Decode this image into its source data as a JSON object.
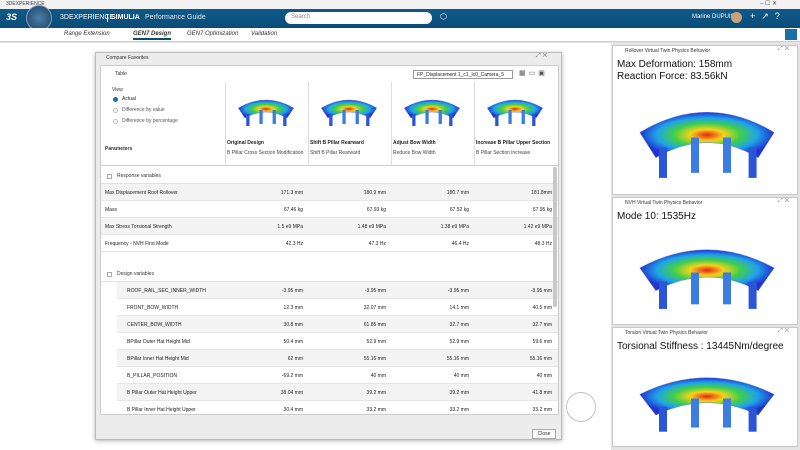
{
  "window_title": "3DEXPERIENCE",
  "header": {
    "brand": "3DEXPERIENCE",
    "app": "SIMULIA",
    "subtitle": "Performance Guide",
    "search": "Search",
    "user": "Marine DUPUIS"
  },
  "tabs": [
    "Range Extension",
    "GEN7 Design",
    "GEN7 Optimization",
    "Validation"
  ],
  "dialog": {
    "title": "Compare Favorites",
    "table_label": "Table",
    "dropdown": "FP_Displacement 1_c1_lc0_Camera_5",
    "view": {
      "label": "View",
      "options": [
        "Actual",
        "Difference by value",
        "Difference by percentage"
      ]
    },
    "parameters_label": "Parameters",
    "columns": [
      {
        "name": "Original Design",
        "description": "B Pillar Cross Section Modification"
      },
      {
        "name": "Shift B Pillar Rearward",
        "description": "Shift B Pillar Rearward"
      },
      {
        "name": "Adjust Bow Width",
        "description": "Reduce Bow Width"
      },
      {
        "name": "Increase B Pillar Upper Section",
        "description": "B Pillar Section increase"
      }
    ],
    "sections": [
      {
        "title": "Response variables",
        "rows": [
          {
            "name": "Max Displacement Roof Rollover",
            "values": [
              "171.3 mm",
              "180.9 mm",
              "180.7 mm",
              "181.8mm"
            ]
          },
          {
            "name": "Mass",
            "values": [
              "67.46 kg",
              "67.93 kg",
              "67.52 kg",
              "67.95 kg"
            ]
          },
          {
            "name": "Max Stress Torsional Strength",
            "values": [
              "1.5 e9 MPa",
              "1.48 e9 MPa",
              "1.38 e9 MPa",
              "1.42 e9 MPa"
            ]
          },
          {
            "name": "Frequency - NVH First Mode",
            "values": [
              "42.3 Hz",
              "47.3 Hz",
              "46.4 Hz",
              "48.3 Hz"
            ]
          }
        ]
      },
      {
        "title": "Design variables",
        "rows": [
          {
            "name": "ROOF_RAIL_SEC_INNER_WIDTH",
            "values": [
              "-3.95 mm",
              "-3.95 mm",
              "-3.95 mm",
              "-3.95 mm"
            ]
          },
          {
            "name": "FRONT_BOW_WIDTH",
            "values": [
              "12.3 mm",
              "32.07 mm",
              "14.1 mm",
              "40.5 mm"
            ]
          },
          {
            "name": "CENTER_BOW_WIDTH",
            "values": [
              "30.8 mm",
              "61.85 mm",
              "32.7 mm",
              "32.7 mm"
            ]
          },
          {
            "name": "BPillar Outer Hat Height Mid",
            "values": [
              "50.4 mm",
              "52.9 mm",
              "52.9 mm",
              "59.6 mm"
            ]
          },
          {
            "name": "BPillar Inner Hat Height Mid",
            "values": [
              "62 mm",
              "55.16 mm",
              "55.16 mm",
              "55.16 mm"
            ]
          },
          {
            "name": "B_PILLAR_POSITION",
            "values": [
              "-69.2 mm",
              "40 mm",
              "40 mm",
              "40 mm"
            ]
          },
          {
            "name": "B Pillar Outer Hat Height Upper",
            "values": [
              "38.04 mm",
              "39.2 mm",
              "39.2 mm",
              "41.8 mm"
            ]
          },
          {
            "name": "B Pillar Inner Hat Height Upper",
            "values": [
              "30.4 mm",
              "33.2 mm",
              "33.2 mm",
              "33.2 mm"
            ]
          }
        ]
      }
    ],
    "close": "Close"
  },
  "panels": [
    {
      "title": "Rollover Virtual Twin Physics Behavior",
      "lines": [
        "Max Deformation: 158mm",
        "Reaction Force: 83.56kN"
      ]
    },
    {
      "title": "NVH Virtual Twin Physics Behavior",
      "lines": [
        "Mode 10: 1535Hz"
      ]
    },
    {
      "title": "Torsion Virtual Twin Physics Behavior",
      "lines": [
        "Torsional Stiffness : 13445Nm/degree"
      ]
    }
  ]
}
